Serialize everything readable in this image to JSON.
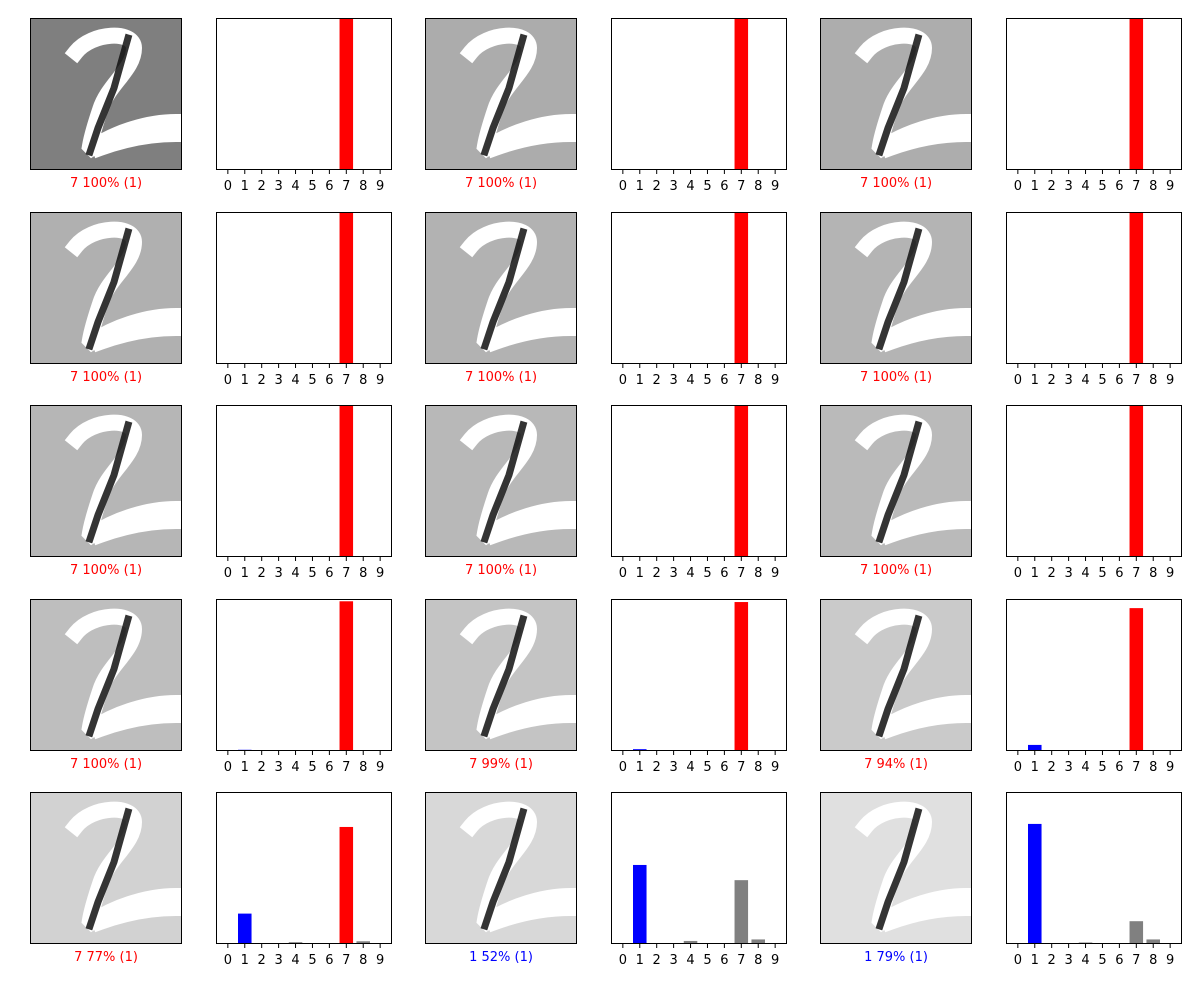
{
  "colors": {
    "predicted_wrong": "#ff0000",
    "predicted_right": "#0000ff",
    "other": "#808080",
    "digit": "#ffffff",
    "stroke_dark": "#111111"
  },
  "class_ticks": [
    "0",
    "1",
    "2",
    "3",
    "4",
    "5",
    "6",
    "7",
    "8",
    "9"
  ],
  "chart_data": [
    {
      "type": "image",
      "label": "7 100% (1)",
      "label_color": "#ff0000",
      "image_background": "#7f7f7f"
    },
    {
      "type": "bar",
      "categories": [
        "0",
        "1",
        "2",
        "3",
        "4",
        "5",
        "6",
        "7",
        "8",
        "9"
      ],
      "values": [
        0,
        0.003,
        0,
        0,
        0,
        0,
        0,
        0.997,
        0,
        0
      ],
      "ylim": [
        0,
        1
      ],
      "predicted": 7,
      "true": 1
    },
    {
      "type": "image",
      "label": "7 100% (1)",
      "label_color": "#ff0000",
      "image_background": "#acacac"
    },
    {
      "type": "bar",
      "categories": [
        "0",
        "1",
        "2",
        "3",
        "4",
        "5",
        "6",
        "7",
        "8",
        "9"
      ],
      "values": [
        0,
        0.003,
        0,
        0,
        0,
        0,
        0,
        0.997,
        0,
        0
      ],
      "ylim": [
        0,
        1
      ],
      "predicted": 7,
      "true": 1
    },
    {
      "type": "image",
      "label": "7 100% (1)",
      "label_color": "#ff0000",
      "image_background": "#adadad"
    },
    {
      "type": "bar",
      "categories": [
        "0",
        "1",
        "2",
        "3",
        "4",
        "5",
        "6",
        "7",
        "8",
        "9"
      ],
      "values": [
        0,
        0.003,
        0,
        0,
        0,
        0,
        0,
        0.997,
        0,
        0
      ],
      "ylim": [
        0,
        1
      ],
      "predicted": 7,
      "true": 1
    },
    {
      "type": "image",
      "label": "7 100% (1)",
      "label_color": "#ff0000",
      "image_background": "#b0b0b0"
    },
    {
      "type": "bar",
      "categories": [
        "0",
        "1",
        "2",
        "3",
        "4",
        "5",
        "6",
        "7",
        "8",
        "9"
      ],
      "values": [
        0,
        0.004,
        0,
        0,
        0,
        0,
        0,
        0.996,
        0,
        0
      ],
      "ylim": [
        0,
        1
      ],
      "predicted": 7,
      "true": 1
    },
    {
      "type": "image",
      "label": "7 100% (1)",
      "label_color": "#ff0000",
      "image_background": "#b2b2b2"
    },
    {
      "type": "bar",
      "categories": [
        "0",
        "1",
        "2",
        "3",
        "4",
        "5",
        "6",
        "7",
        "8",
        "9"
      ],
      "values": [
        0,
        0.004,
        0,
        0,
        0,
        0,
        0,
        0.996,
        0,
        0
      ],
      "ylim": [
        0,
        1
      ],
      "predicted": 7,
      "true": 1
    },
    {
      "type": "image",
      "label": "7 100% (1)",
      "label_color": "#ff0000",
      "image_background": "#b4b4b4"
    },
    {
      "type": "bar",
      "categories": [
        "0",
        "1",
        "2",
        "3",
        "4",
        "5",
        "6",
        "7",
        "8",
        "9"
      ],
      "values": [
        0,
        0.004,
        0,
        0,
        0,
        0,
        0,
        0.996,
        0,
        0
      ],
      "ylim": [
        0,
        1
      ],
      "predicted": 7,
      "true": 1
    },
    {
      "type": "image",
      "label": "7 100% (1)",
      "label_color": "#ff0000",
      "image_background": "#b6b6b6"
    },
    {
      "type": "bar",
      "categories": [
        "0",
        "1",
        "2",
        "3",
        "4",
        "5",
        "6",
        "7",
        "8",
        "9"
      ],
      "values": [
        0,
        0.005,
        0,
        0,
        0,
        0,
        0,
        0.995,
        0,
        0
      ],
      "ylim": [
        0,
        1
      ],
      "predicted": 7,
      "true": 1
    },
    {
      "type": "image",
      "label": "7 100% (1)",
      "label_color": "#ff0000",
      "image_background": "#b8b8b8"
    },
    {
      "type": "bar",
      "categories": [
        "0",
        "1",
        "2",
        "3",
        "4",
        "5",
        "6",
        "7",
        "8",
        "9"
      ],
      "values": [
        0,
        0.006,
        0,
        0,
        0,
        0,
        0,
        0.994,
        0,
        0
      ],
      "ylim": [
        0,
        1
      ],
      "predicted": 7,
      "true": 1
    },
    {
      "type": "image",
      "label": "7 100% (1)",
      "label_color": "#ff0000",
      "image_background": "#bababa"
    },
    {
      "type": "bar",
      "categories": [
        "0",
        "1",
        "2",
        "3",
        "4",
        "5",
        "6",
        "7",
        "8",
        "9"
      ],
      "values": [
        0,
        0.006,
        0,
        0,
        0,
        0,
        0,
        0.994,
        0,
        0
      ],
      "ylim": [
        0,
        1
      ],
      "predicted": 7,
      "true": 1
    },
    {
      "type": "image",
      "label": "7 100% (1)",
      "label_color": "#ff0000",
      "image_background": "#bebebe"
    },
    {
      "type": "bar",
      "categories": [
        "0",
        "1",
        "2",
        "3",
        "4",
        "5",
        "6",
        "7",
        "8",
        "9"
      ],
      "values": [
        0,
        0.008,
        0,
        0,
        0.004,
        0,
        0,
        0.985,
        0.002,
        0.003
      ],
      "ylim": [
        0,
        1
      ],
      "predicted": 7,
      "true": 1
    },
    {
      "type": "image",
      "label": "7 99% (1)",
      "label_color": "#ff0000",
      "image_background": "#c4c4c4"
    },
    {
      "type": "bar",
      "categories": [
        "0",
        "1",
        "2",
        "3",
        "4",
        "5",
        "6",
        "7",
        "8",
        "9"
      ],
      "values": [
        0,
        0.012,
        0,
        0,
        0.004,
        0,
        0,
        0.98,
        0.002,
        0.003
      ],
      "ylim": [
        0,
        1
      ],
      "predicted": 7,
      "true": 1
    },
    {
      "type": "image",
      "label": "7 94% (1)",
      "label_color": "#ff0000",
      "image_background": "#cacaca"
    },
    {
      "type": "bar",
      "categories": [
        "0",
        "1",
        "2",
        "3",
        "4",
        "5",
        "6",
        "7",
        "8",
        "9"
      ],
      "values": [
        0,
        0.04,
        0,
        0,
        0.006,
        0.004,
        0,
        0.94,
        0.006,
        0.006
      ],
      "ylim": [
        0,
        1
      ],
      "predicted": 7,
      "true": 1
    },
    {
      "type": "image",
      "label": "7 77% (1)",
      "label_color": "#ff0000",
      "image_background": "#d2d2d2"
    },
    {
      "type": "bar",
      "categories": [
        "0",
        "1",
        "2",
        "3",
        "4",
        "5",
        "6",
        "7",
        "8",
        "9"
      ],
      "values": [
        0,
        0.2,
        0,
        0,
        0.012,
        0,
        0,
        0.77,
        0.018,
        0
      ],
      "ylim": [
        0,
        1
      ],
      "predicted": 7,
      "true": 1
    },
    {
      "type": "image",
      "label": "1 52% (1)",
      "label_color": "#0000ff",
      "image_background": "#d8d8d8"
    },
    {
      "type": "bar",
      "categories": [
        "0",
        "1",
        "2",
        "3",
        "4",
        "5",
        "6",
        "7",
        "8",
        "9"
      ],
      "values": [
        0,
        0.52,
        0,
        0,
        0.02,
        0,
        0,
        0.42,
        0.03,
        0
      ],
      "ylim": [
        0,
        1
      ],
      "predicted": 1,
      "true": 1
    },
    {
      "type": "image",
      "label": "1 79% (1)",
      "label_color": "#0000ff",
      "image_background": "#e0e0e0"
    },
    {
      "type": "bar",
      "categories": [
        "0",
        "1",
        "2",
        "3",
        "4",
        "5",
        "6",
        "7",
        "8",
        "9"
      ],
      "values": [
        0,
        0.79,
        0,
        0,
        0.01,
        0,
        0,
        0.15,
        0.03,
        0
      ],
      "ylim": [
        0,
        1
      ],
      "predicted": 1,
      "true": 1
    }
  ]
}
